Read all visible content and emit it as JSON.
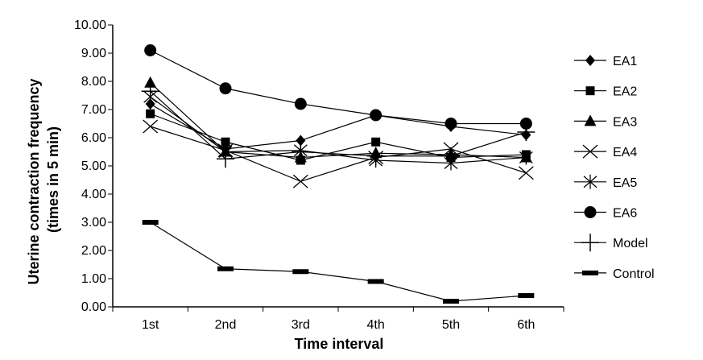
{
  "chart_data": {
    "type": "line",
    "title": "",
    "xlabel": "Time interval",
    "ylabel": "Uterine contraction frequency (times in 5 min)",
    "ylabel_lines": [
      "Uterine contraction frequency",
      "(times in 5 min)"
    ],
    "categories": [
      "1st",
      "2nd",
      "3rd",
      "4th",
      "5th",
      "6th"
    ],
    "ylim": [
      0,
      10
    ],
    "yticks": [
      "0.00",
      "1.00",
      "2.00",
      "3.00",
      "4.00",
      "5.00",
      "6.00",
      "7.00",
      "8.00",
      "9.00",
      "10.00"
    ],
    "grid": false,
    "legend_position": "right",
    "series": [
      {
        "name": "EA1",
        "marker": "diamond",
        "values": [
          7.2,
          5.6,
          5.9,
          6.8,
          6.4,
          6.1
        ]
      },
      {
        "name": "EA2",
        "marker": "square",
        "values": [
          6.85,
          5.85,
          5.2,
          5.85,
          5.3,
          5.4
        ]
      },
      {
        "name": "EA3",
        "marker": "triangle",
        "values": [
          7.95,
          5.5,
          5.3,
          5.45,
          5.4,
          5.3
        ]
      },
      {
        "name": "EA4",
        "marker": "x",
        "values": [
          6.4,
          5.55,
          4.45,
          5.3,
          5.6,
          4.75
        ]
      },
      {
        "name": "EA5",
        "marker": "asterisk",
        "values": [
          7.45,
          5.5,
          5.55,
          5.2,
          5.1,
          5.3
        ]
      },
      {
        "name": "EA6",
        "marker": "circle",
        "values": [
          9.1,
          7.75,
          7.2,
          6.8,
          6.5,
          6.5
        ]
      },
      {
        "name": "Model",
        "marker": "plus",
        "values": [
          7.65,
          5.25,
          5.5,
          5.35,
          5.35,
          6.2
        ]
      },
      {
        "name": "Control",
        "marker": "dash",
        "values": [
          3.0,
          1.35,
          1.25,
          0.9,
          0.2,
          0.4
        ]
      }
    ]
  }
}
